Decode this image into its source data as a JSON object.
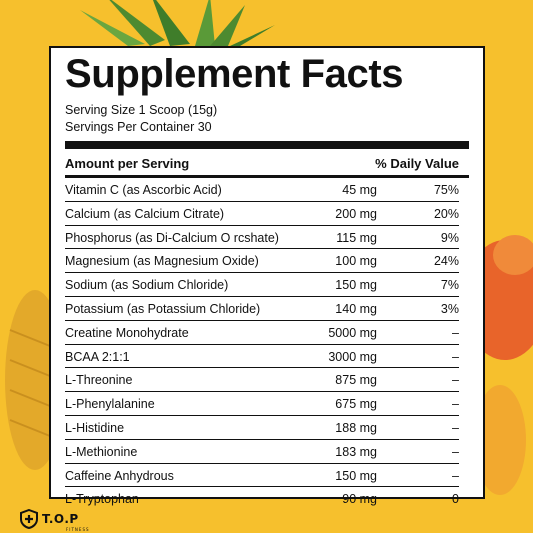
{
  "panel": {
    "title": "Supplement Facts",
    "serving_size": "Serving Size 1 Scoop (15g)",
    "servings_per_container": "Servings Per Container 30",
    "header_left": "Amount per Serving",
    "header_right": "% Daily Value"
  },
  "rows": [
    {
      "name": "Vitamin C (as Ascorbic Acid)",
      "amount": "45 mg",
      "dv": "75%"
    },
    {
      "name": "Calcium (as Calcium Citrate)",
      "amount": "200 mg",
      "dv": "20%"
    },
    {
      "name": "Phosphorus (as Di-Calcium O rcshate)",
      "amount": "115 mg",
      "dv": "9%"
    },
    {
      "name": "Magnesium (as Magnesium Oxide)",
      "amount": "100 mg",
      "dv": "24%"
    },
    {
      "name": "Sodium (as Sodium Chloride)",
      "amount": "150 mg",
      "dv": "7%"
    },
    {
      "name": "Potassium (as Potassium Chloride)",
      "amount": "140 mg",
      "dv": "3%"
    },
    {
      "name": "Creatine Monohydrate",
      "amount": "5000 mg",
      "dv": "–"
    },
    {
      "name": "BCAA 2:1:1",
      "amount": "3000 mg",
      "dv": "–"
    },
    {
      "name": "L-Threonine",
      "amount": "875 mg",
      "dv": "–"
    },
    {
      "name": "L-Phenylalanine",
      "amount": "675 mg",
      "dv": "–"
    },
    {
      "name": "L-Histidine",
      "amount": "188 mg",
      "dv": "–"
    },
    {
      "name": "L-Methionine",
      "amount": "183 mg",
      "dv": "–"
    },
    {
      "name": "Caffeine Anhydrous",
      "amount": "150 mg",
      "dv": "–"
    },
    {
      "name": "L-Tryptophan",
      "amount": "90 mg",
      "dv": "0"
    }
  ],
  "brand": {
    "logo_text": "T.O.P",
    "logo_subtext": "FITNESS",
    "logo_icon": "shield-plus-icon"
  },
  "colors": {
    "background": "#f6c02d",
    "panel": "#ffffff",
    "text": "#111111",
    "mango": "#e8642a",
    "leaf": "#3f7d2a"
  }
}
